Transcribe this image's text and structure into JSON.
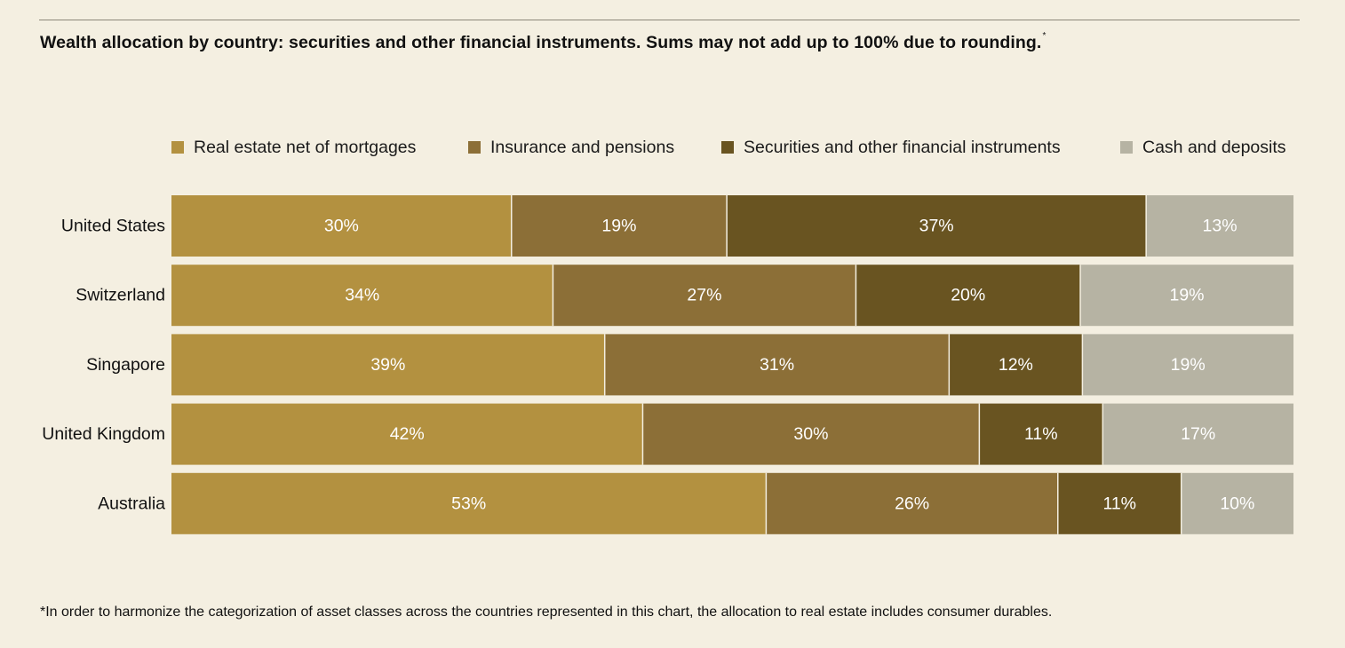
{
  "title": "Wealth allocation by country: securities and other financial instruments. Sums may not add up to 100% due to rounding.",
  "title_marker": "*",
  "footnote": "*In order to harmonize the categorization of asset classes across the countries represented in this chart, the allocation to real estate includes consumer durables.",
  "colors": {
    "real_estate": "#b39140",
    "insurance": "#8c6f37",
    "securities": "#695421",
    "cash": "#b6b3a3",
    "background": "#f4efe1"
  },
  "chart_data": {
    "type": "bar",
    "orientation": "horizontal",
    "stacked": true,
    "title": "Wealth allocation by country: securities and other financial instruments. Sums may not add up to 100% due to rounding.",
    "legend_position": "top",
    "grid": false,
    "xlim": [
      0,
      100
    ],
    "categories": [
      "United States",
      "Switzerland",
      "Singapore",
      "United Kingdom",
      "Australia"
    ],
    "series": [
      {
        "name": "Real estate net of mortgages",
        "color": "#b39140",
        "values": [
          30,
          34,
          39,
          42,
          53
        ],
        "labels": [
          "30%",
          "34%",
          "39%",
          "42%",
          "53%"
        ]
      },
      {
        "name": "Insurance and pensions",
        "color": "#8c6f37",
        "values": [
          19,
          27,
          31,
          30,
          26
        ],
        "labels": [
          "19%",
          "27%",
          "31%",
          "30%",
          "26%"
        ]
      },
      {
        "name": "Securities and other financial instruments",
        "color": "#695421",
        "values": [
          37,
          20,
          12,
          11,
          11
        ],
        "labels": [
          "37%",
          "20%",
          "12%",
          "11%",
          "11%"
        ]
      },
      {
        "name": "Cash and deposits",
        "color": "#b6b3a3",
        "values": [
          13,
          19,
          19,
          17,
          10
        ],
        "labels": [
          "13%",
          "19%",
          "19%",
          "17%",
          "10%"
        ]
      }
    ]
  }
}
